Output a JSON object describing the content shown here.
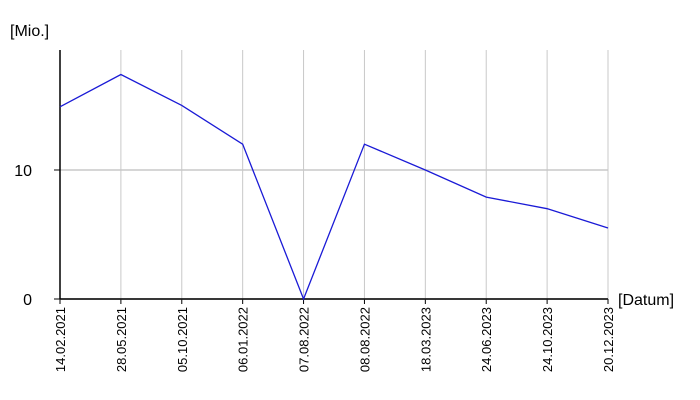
{
  "chart_data": {
    "type": "line",
    "y_label": "[Mio.]",
    "x_label": "[Datum]",
    "categories": [
      "14.02.2021",
      "28.05.2021",
      "05.10.2021",
      "06.01.2022",
      "07.08.2022",
      "08.08.2022",
      "18.03.2023",
      "24.06.2023",
      "24.10.2023",
      "20.12.2023"
    ],
    "series": [
      {
        "color": "#1a1ad6",
        "values": [
          14.9,
          17.4,
          15.0,
          12.0,
          0,
          12.0,
          10.0,
          7.9,
          7.0,
          5.5
        ]
      }
    ],
    "ylim": [
      0,
      19.3
    ],
    "yticks": [
      0,
      10
    ],
    "grid": true
  }
}
